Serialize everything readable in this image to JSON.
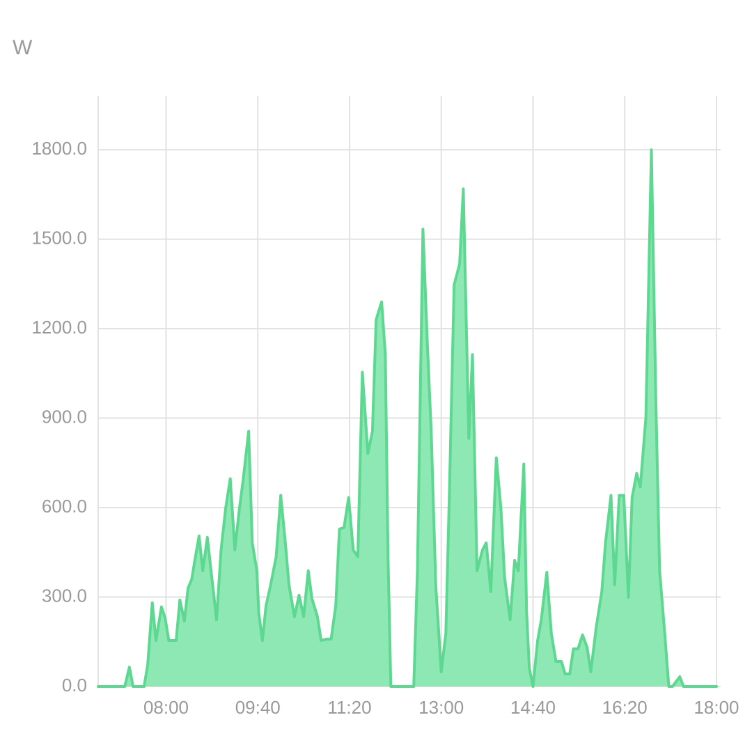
{
  "chart_data": {
    "type": "area",
    "y_label": "W",
    "x": [
      "06:46",
      "07:15",
      "07:20",
      "07:24",
      "07:36",
      "07:40",
      "07:45",
      "07:49",
      "07:55",
      "07:59",
      "08:03",
      "08:07",
      "08:11",
      "08:15",
      "08:20",
      "08:24",
      "08:28",
      "08:31",
      "08:36",
      "08:40",
      "08:45",
      "08:49",
      "08:55",
      "09:00",
      "09:05",
      "09:10",
      "09:15",
      "09:20",
      "09:24",
      "09:30",
      "09:34",
      "09:39",
      "09:41",
      "09:45",
      "09:49",
      "09:54",
      "10:00",
      "10:05",
      "10:10",
      "10:14",
      "10:20",
      "10:25",
      "10:30",
      "10:35",
      "10:39",
      "10:45",
      "10:49",
      "10:55",
      "11:00",
      "11:05",
      "11:09",
      "11:14",
      "11:19",
      "11:24",
      "11:29",
      "11:34",
      "11:40",
      "11:45",
      "11:49",
      "11:55",
      "11:59",
      "12:02",
      "12:05",
      "12:30",
      "12:34",
      "12:40",
      "12:45",
      "12:49",
      "12:54",
      "13:00",
      "13:05",
      "13:09",
      "13:14",
      "13:20",
      "13:24",
      "13:30",
      "13:34",
      "13:39",
      "13:45",
      "13:49",
      "13:54",
      "14:00",
      "14:05",
      "14:09",
      "14:15",
      "14:20",
      "14:24",
      "14:30",
      "14:33",
      "14:36",
      "14:40",
      "14:45",
      "14:49",
      "14:55",
      "15:00",
      "15:05",
      "15:11",
      "15:15",
      "15:20",
      "15:24",
      "15:29",
      "15:34",
      "15:39",
      "15:43",
      "15:49",
      "15:55",
      "15:59",
      "16:05",
      "16:09",
      "16:14",
      "16:19",
      "16:24",
      "16:28",
      "16:33",
      "16:37",
      "16:43",
      "16:49",
      "16:54",
      "16:58",
      "17:03",
      "17:08",
      "17:12",
      "17:20",
      "17:24",
      "18:00"
    ],
    "values": [
      0,
      0,
      65,
      0,
      0,
      72,
      281,
      154,
      267,
      229,
      154,
      154,
      154,
      290,
      220,
      330,
      360,
      416,
      505,
      388,
      500,
      388,
      224,
      458,
      598,
      697,
      458,
      598,
      692,
      856,
      482,
      388,
      248,
      154,
      271,
      341,
      435,
      641,
      482,
      341,
      234,
      306,
      234,
      388,
      295,
      234,
      154,
      159,
      159,
      271,
      528,
      533,
      634,
      458,
      435,
      1054,
      781,
      856,
      1230,
      1290,
      1113,
      435,
      0,
      0,
      388,
      1534,
      1136,
      856,
      341,
      49,
      178,
      669,
      1347,
      1417,
      1669,
      832,
      1113,
      388,
      458,
      482,
      318,
      767,
      598,
      365,
      224,
      423,
      388,
      746,
      248,
      61,
      0,
      154,
      224,
      383,
      178,
      84,
      84,
      42,
      42,
      126,
      126,
      173,
      131,
      49,
      201,
      318,
      482,
      641,
      341,
      641,
      641,
      299,
      634,
      715,
      669,
      902,
      1800,
      949,
      388,
      201,
      0,
      0,
      33,
      0,
      0
    ],
    "color": "#5dd890",
    "fill": "#8ee8b3",
    "xlim": [
      "06:46",
      "18:00"
    ],
    "xticks": [
      "08:00",
      "09:40",
      "11:20",
      "13:00",
      "14:40",
      "16:20",
      "18:00"
    ],
    "ylim": [
      0,
      1980
    ],
    "yticks": [
      {
        "value": 0,
        "label": "0.0"
      },
      {
        "value": 300,
        "label": "300.0"
      },
      {
        "value": 600,
        "label": "600.0"
      },
      {
        "value": 900,
        "label": "900.0"
      },
      {
        "value": 1200,
        "label": "1200.0"
      },
      {
        "value": 1500,
        "label": "1500.0"
      },
      {
        "value": 1800,
        "label": "1800.0"
      }
    ],
    "grid": true
  }
}
